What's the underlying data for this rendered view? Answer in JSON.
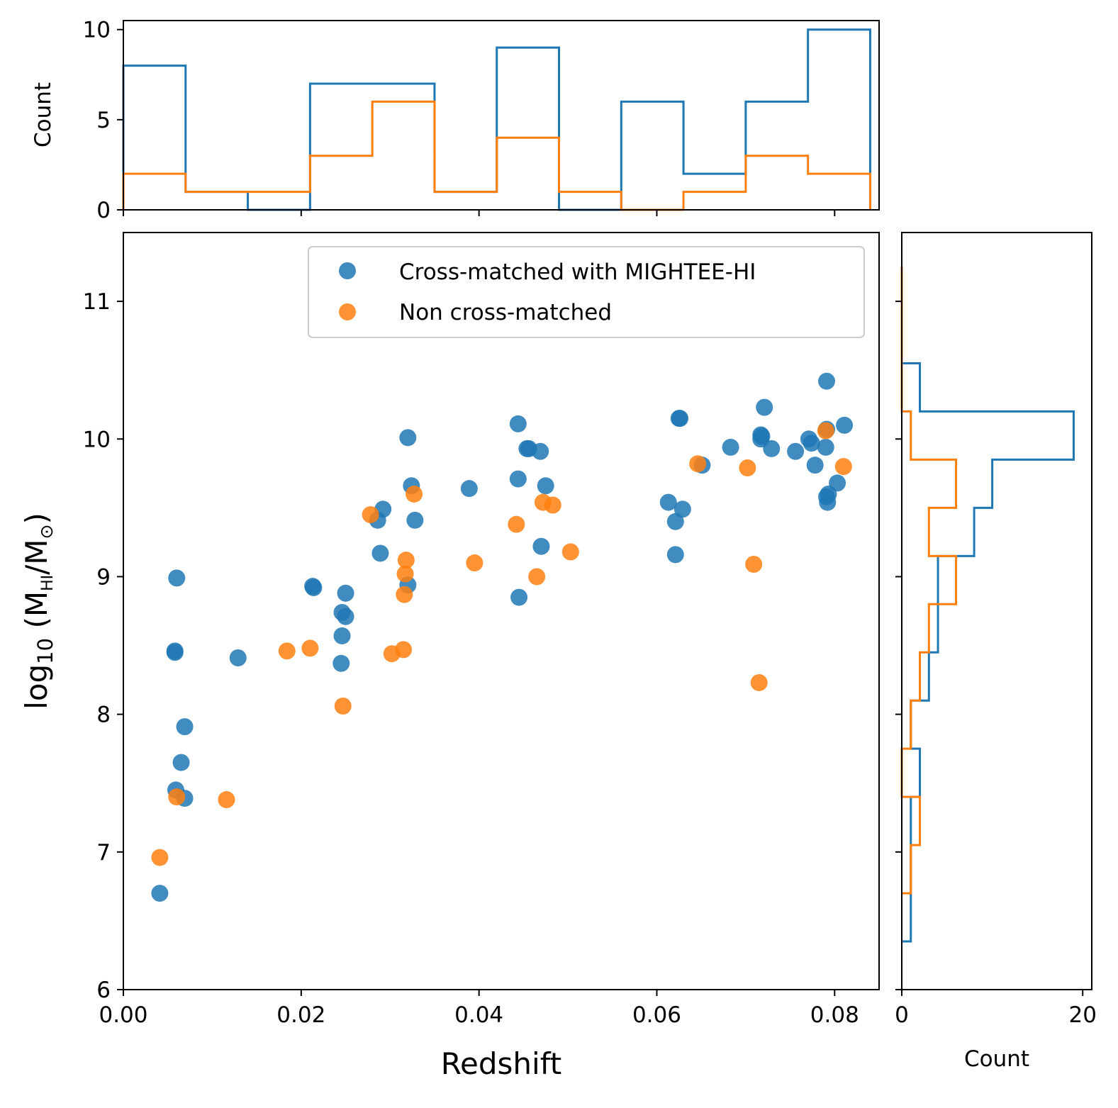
{
  "colors": {
    "blue": "#1f77b4",
    "orange": "#ff7f0e"
  },
  "chart_data": [
    {
      "id": "scatter",
      "type": "scatter",
      "xlabel": "Redshift",
      "ylabel_prefix": "log",
      "ylabel_log_sub": "10",
      "ylabel_open": " (M",
      "ylabel_sub1": "HI",
      "ylabel_mid": "/M",
      "ylabel_sub2": "⊙",
      "ylabel_close": ")",
      "xlim": [
        0.0,
        0.085
      ],
      "ylim": [
        6,
        11.5
      ],
      "xticks": [
        0.0,
        0.02,
        0.04,
        0.06,
        0.08
      ],
      "xtick_labels": [
        "0.00",
        "0.02",
        "0.04",
        "0.06",
        "0.08"
      ],
      "yticks": [
        6,
        7,
        8,
        9,
        10,
        11
      ],
      "ytick_labels": [
        "6",
        "7",
        "8",
        "9",
        "10",
        "11"
      ],
      "legend": [
        "Cross-matched with MIGHTEE-HI",
        "Non cross-matched"
      ],
      "series": [
        {
          "name": "Cross-matched with MIGHTEE-HI",
          "color_key": "blue",
          "points": [
            [
              0.0041,
              6.7
            ],
            [
              0.006,
              8.99
            ],
            [
              0.0058,
              8.46
            ],
            [
              0.0058,
              8.45
            ],
            [
              0.0065,
              7.65
            ],
            [
              0.0069,
              7.91
            ],
            [
              0.0059,
              7.45
            ],
            [
              0.0069,
              7.39
            ],
            [
              0.0129,
              8.41
            ],
            [
              0.0213,
              8.93
            ],
            [
              0.0214,
              8.92
            ],
            [
              0.0245,
              8.37
            ],
            [
              0.0246,
              8.57
            ],
            [
              0.0246,
              8.74
            ],
            [
              0.025,
              8.88
            ],
            [
              0.025,
              8.71
            ],
            [
              0.0286,
              9.41
            ],
            [
              0.0289,
              9.17
            ],
            [
              0.0292,
              9.49
            ],
            [
              0.032,
              8.94
            ],
            [
              0.032,
              10.01
            ],
            [
              0.0324,
              9.66
            ],
            [
              0.0328,
              9.41
            ],
            [
              0.0389,
              9.64
            ],
            [
              0.0444,
              10.11
            ],
            [
              0.0444,
              9.71
            ],
            [
              0.0445,
              8.85
            ],
            [
              0.0454,
              9.93
            ],
            [
              0.0456,
              9.93
            ],
            [
              0.0469,
              9.91
            ],
            [
              0.047,
              9.22
            ],
            [
              0.0475,
              9.66
            ],
            [
              0.0613,
              9.54
            ],
            [
              0.0621,
              9.4
            ],
            [
              0.0621,
              9.16
            ],
            [
              0.0625,
              10.15
            ],
            [
              0.0626,
              10.15
            ],
            [
              0.0629,
              9.49
            ],
            [
              0.0651,
              9.81
            ],
            [
              0.0683,
              9.94
            ],
            [
              0.0717,
              10.03
            ],
            [
              0.0717,
              10.0
            ],
            [
              0.0718,
              10.02
            ],
            [
              0.0721,
              10.23
            ],
            [
              0.0729,
              9.93
            ],
            [
              0.0756,
              9.91
            ],
            [
              0.0771,
              10.0
            ],
            [
              0.0774,
              9.97
            ],
            [
              0.0778,
              9.81
            ],
            [
              0.079,
              9.94
            ],
            [
              0.0791,
              10.42
            ],
            [
              0.0791,
              10.07
            ],
            [
              0.0791,
              9.58
            ],
            [
              0.0792,
              9.54
            ],
            [
              0.0793,
              9.6
            ],
            [
              0.0803,
              9.68
            ],
            [
              0.0811,
              10.1
            ]
          ]
        },
        {
          "name": "Non cross-matched",
          "color_key": "orange",
          "points": [
            [
              0.0041,
              6.96
            ],
            [
              0.006,
              7.4
            ],
            [
              0.0116,
              7.38
            ],
            [
              0.0184,
              8.46
            ],
            [
              0.021,
              8.48
            ],
            [
              0.0247,
              8.06
            ],
            [
              0.0278,
              9.45
            ],
            [
              0.0302,
              8.44
            ],
            [
              0.0315,
              8.47
            ],
            [
              0.0316,
              8.87
            ],
            [
              0.0317,
              9.02
            ],
            [
              0.0318,
              9.12
            ],
            [
              0.0327,
              9.6
            ],
            [
              0.0395,
              9.1
            ],
            [
              0.0442,
              9.38
            ],
            [
              0.0465,
              9.0
            ],
            [
              0.0472,
              9.54
            ],
            [
              0.0483,
              9.52
            ],
            [
              0.0503,
              9.18
            ],
            [
              0.0646,
              9.82
            ],
            [
              0.0702,
              9.79
            ],
            [
              0.0709,
              9.09
            ],
            [
              0.0715,
              8.23
            ],
            [
              0.079,
              10.06
            ],
            [
              0.081,
              9.8
            ]
          ]
        }
      ]
    },
    {
      "id": "top_hist",
      "type": "histogram",
      "orientation": "vertical",
      "ylabel": "Count",
      "xlim": [
        0.0,
        0.085
      ],
      "ylim": [
        0,
        10.5
      ],
      "yticks": [
        0,
        5,
        10
      ],
      "ytick_labels": [
        "0",
        "5",
        "10"
      ],
      "bin_edges": [
        0.0,
        0.007,
        0.014,
        0.021,
        0.028,
        0.035,
        0.042,
        0.049,
        0.056,
        0.063,
        0.07,
        0.077,
        0.084
      ],
      "series": [
        {
          "name": "Cross-matched with MIGHTEE-HI",
          "color_key": "blue",
          "counts": [
            8,
            1,
            0,
            7,
            7,
            1,
            9,
            0,
            6,
            2,
            6,
            10
          ]
        },
        {
          "name": "Non cross-matched",
          "color_key": "orange",
          "counts": [
            2,
            1,
            1,
            3,
            6,
            1,
            4,
            1,
            0,
            1,
            3,
            2
          ]
        }
      ]
    },
    {
      "id": "right_hist",
      "type": "histogram",
      "orientation": "horizontal",
      "xlabel": "Count",
      "xlim": [
        0,
        21
      ],
      "xticks": [
        0,
        20
      ],
      "xtick_labels": [
        "0",
        "20"
      ],
      "series": [
        {
          "name": "Cross-matched with MIGHTEE-HI",
          "color_key": "blue",
          "bin_edges": [
            6.35,
            6.7,
            7.05,
            7.4,
            7.75,
            8.1,
            8.45,
            8.8,
            9.15,
            9.5,
            9.85,
            10.2,
            10.55
          ],
          "counts": [
            1,
            1,
            1,
            2,
            1,
            3,
            4,
            4,
            8,
            10,
            19,
            2
          ]
        },
        {
          "name": "Non cross-matched",
          "color_key": "orange",
          "bin_edges": [
            6.7,
            7.05,
            7.4,
            7.75,
            8.1,
            8.45,
            8.8,
            9.15,
            9.5,
            9.85,
            10.2,
            11.25
          ],
          "counts": [
            1,
            2,
            0,
            1,
            2,
            3,
            6,
            3,
            6,
            1,
            0
          ]
        }
      ]
    }
  ]
}
